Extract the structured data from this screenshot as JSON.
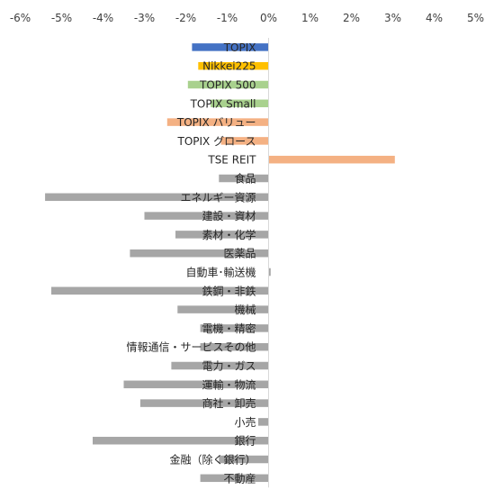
{
  "chart_data": {
    "type": "bar",
    "orientation": "horizontal",
    "axis_position": "top",
    "xlim": [
      -6,
      5
    ],
    "x_ticks": [
      "-6%",
      "-5%",
      "-4%",
      "-3%",
      "-2%",
      "-1%",
      "0%",
      "1%",
      "2%",
      "3%",
      "4%",
      "5%"
    ],
    "grid": false,
    "legend": "none",
    "unit": "%",
    "categories": [
      "TOPIX",
      "Nikkei225",
      "TOPIX 500",
      "TOPIX Small",
      "TOPIX バリュー",
      "TOPIX グロース",
      "TSE REIT",
      "食品",
      "エネルギー資源",
      "建設・資材",
      "素材・化学",
      "医薬品",
      "自動車･輸送機",
      "鉄鋼・非鉄",
      "機械",
      "電機・精密",
      "情報通信・サービスその他",
      "電力・ガス",
      "運輸・物流",
      "商社・卸売",
      "小売",
      "銀行",
      "金融（除く銀行）",
      "不動産"
    ],
    "values": [
      -1.85,
      -1.7,
      -1.95,
      -1.4,
      -2.45,
      -1.15,
      3.05,
      -1.2,
      -5.4,
      -3.0,
      -2.25,
      -3.35,
      0.05,
      -5.25,
      -2.2,
      -1.65,
      -1.65,
      -2.35,
      -3.5,
      -3.1,
      -0.25,
      -4.25,
      -1.2,
      -1.65
    ],
    "colors": [
      "#4472C4",
      "#FFC000",
      "#A9D18E",
      "#A9D18E",
      "#F4B183",
      "#F4B183",
      "#F4B183",
      "#A6A6A6",
      "#A6A6A6",
      "#A6A6A6",
      "#A6A6A6",
      "#A6A6A6",
      "#A6A6A6",
      "#A6A6A6",
      "#A6A6A6",
      "#A6A6A6",
      "#A6A6A6",
      "#A6A6A6",
      "#A6A6A6",
      "#A6A6A6",
      "#A6A6A6",
      "#A6A6A6",
      "#A6A6A6",
      "#A6A6A6"
    ]
  }
}
